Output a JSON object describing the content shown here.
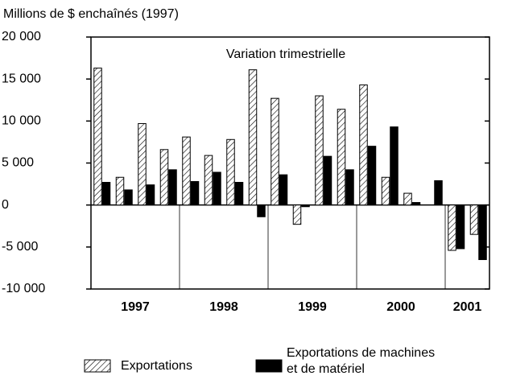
{
  "chart_data": {
    "type": "bar",
    "title": "Millions de $ enchaînés (1997)",
    "annotation": "Variation trimestrielle",
    "categories": [
      null,
      null,
      null,
      null,
      null,
      null,
      null,
      null,
      null,
      null,
      null,
      null,
      null,
      null,
      null,
      null,
      null,
      null
    ],
    "year_labels": [
      "1997",
      "1998",
      "1999",
      "2000",
      "2001"
    ],
    "series": [
      {
        "name": "Exportations",
        "color": "#000000",
        "pattern": "hatch",
        "values": [
          16300,
          3300,
          9700,
          6600,
          8100,
          5900,
          7800,
          16100,
          12700,
          -2300,
          13000,
          11400,
          14300,
          3300,
          1400,
          0,
          -5400,
          -3500
        ]
      },
      {
        "name": "Exportations de machines et de matériel",
        "color": "#000000",
        "pattern": "solid",
        "values": [
          2700,
          1800,
          2400,
          4200,
          2800,
          3900,
          2700,
          -1400,
          3600,
          -200,
          5800,
          4200,
          7000,
          9300,
          300,
          2900,
          -5200,
          -6500
        ]
      }
    ],
    "ylim": [
      -10000,
      20000
    ],
    "yticks": [
      {
        "value": -10000,
        "label": "-10 000"
      },
      {
        "value": -5000,
        "label": "-5 000"
      },
      0,
      {
        "value": 5000,
        "label": "5 000"
      },
      {
        "value": 10000,
        "label": "10 000"
      },
      {
        "value": 15000,
        "label": "15 000"
      },
      {
        "value": 20000,
        "label": "20 000"
      }
    ],
    "grid": false
  }
}
